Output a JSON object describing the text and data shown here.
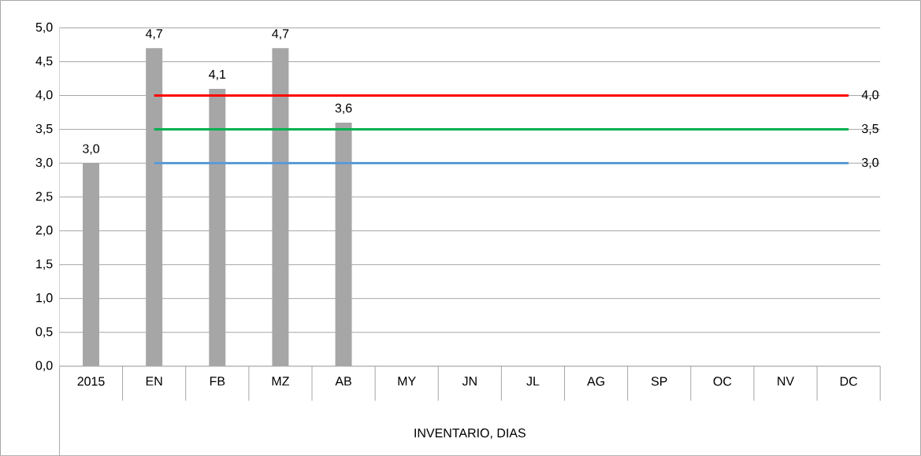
{
  "chart_data": {
    "type": "bar",
    "xlabel": "INVENTARIO, DIAS",
    "categories": [
      "2015",
      "EN",
      "FB",
      "MZ",
      "AB",
      "MY",
      "JN",
      "JL",
      "AG",
      "SP",
      "OC",
      "NV",
      "DC"
    ],
    "ylim": [
      0,
      5
    ],
    "yticks": [
      {
        "value": 0,
        "label": "0,0"
      },
      {
        "value": 0.5,
        "label": "0,5"
      },
      {
        "value": 1,
        "label": "1,0"
      },
      {
        "value": 1.5,
        "label": "1,5"
      },
      {
        "value": 2,
        "label": "2,0"
      },
      {
        "value": 2.5,
        "label": "2,5"
      },
      {
        "value": 3,
        "label": "3,0"
      },
      {
        "value": 3.5,
        "label": "3,5"
      },
      {
        "value": 4,
        "label": "4,0"
      },
      {
        "value": 4.5,
        "label": "4,5"
      },
      {
        "value": 5,
        "label": "5,0"
      }
    ],
    "grid": "y",
    "series": [
      {
        "color": "#a6a6a6",
        "values": [
          3.0,
          4.7,
          4.1,
          4.7,
          3.6,
          null,
          null,
          null,
          null,
          null,
          null,
          null,
          null
        ],
        "value_labels": [
          "3,0",
          "4,7",
          "4,1",
          "4,7",
          "3,6",
          null,
          null,
          null,
          null,
          null,
          null,
          null,
          null
        ]
      },
      {
        "type": "line",
        "color": "#ff0000",
        "values": [
          null,
          4,
          4,
          4,
          4,
          4,
          4,
          4,
          4,
          4,
          4,
          4,
          4
        ],
        "value_labels": [
          null,
          null,
          null,
          null,
          null,
          null,
          null,
          null,
          null,
          null,
          null,
          null,
          "4,0"
        ]
      },
      {
        "type": "line",
        "color": "#00b050",
        "values": [
          null,
          3.5,
          3.5,
          3.5,
          3.5,
          3.5,
          3.5,
          3.5,
          3.5,
          3.5,
          3.5,
          3.5,
          3.5
        ],
        "value_labels": [
          null,
          null,
          null,
          null,
          null,
          null,
          null,
          null,
          null,
          null,
          null,
          null,
          "3,5"
        ]
      },
      {
        "type": "line",
        "color": "#5b9bd5",
        "values": [
          null,
          3,
          3,
          3,
          3,
          3,
          3,
          3,
          3,
          3,
          3,
          3,
          3
        ],
        "value_labels": [
          null,
          null,
          null,
          null,
          null,
          null,
          null,
          null,
          null,
          null,
          null,
          null,
          "3,0"
        ]
      }
    ]
  }
}
